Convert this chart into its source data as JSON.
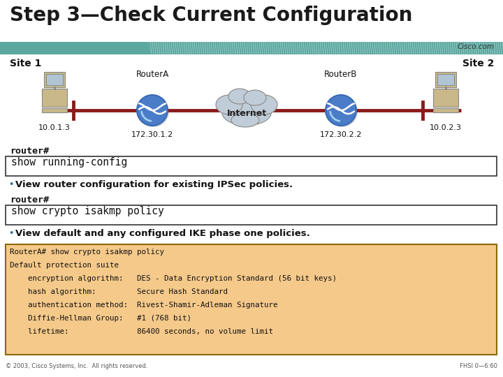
{
  "title": "Step 3—Check Current Configuration",
  "title_fontsize": 20,
  "title_color": "#1a1a1a",
  "bg_color": "#ffffff",
  "header_bar_color1": "#5ba8a8",
  "header_bar_color2": "#3a7a7a",
  "cisco_com": "Cisco.com",
  "site1_label": "Site 1",
  "site2_label": "Site 2",
  "routerA_label": "RouterA",
  "routerB_label": "RouterB",
  "internet_label": "Internet",
  "ip_10013": "10.0.1.3",
  "ip_17212": "172.30.1.2",
  "ip_17222": "172.30.2.2",
  "ip_10023": "10.0.2.3",
  "prompt1": "router#",
  "cmd1": "show running-config",
  "bullet1_dot": "•",
  "bullet1_text": "View router configuration for existing IPSec policies.",
  "prompt2": "router#",
  "cmd2": "show crypto isakmp policy",
  "bullet2_dot": "•",
  "bullet2_text": "View default and any configured IKE phase one policies.",
  "output_box_bg": "#f5c98a",
  "output_box_border": "#8b6a00",
  "output_lines": [
    "RouterA# show crypto isakmp policy",
    "Default protection suite",
    "    encryption algorithm:   DES - Data Encryption Standard (56 bit keys)",
    "    hash algorithm:         Secure Hash Standard",
    "    authentication method:  Rivest-Shamir-Adleman Signature",
    "    Diffie-Hellman Group:   #1 (768 bit)",
    "    lifetime:               86400 seconds, no volume limit"
  ],
  "footer_left": "© 2003, Cisco Systems, Inc.  All rights reserved.",
  "footer_right": "FHSI 0—6:60",
  "cmd_box_border": "#333333",
  "cmd_box_bg": "#ffffff",
  "line_color": "#8b1a1a",
  "router_color": "#4a7cc7",
  "router_color2": "#3a6ab5",
  "cloud_color": "#c0cdd8",
  "cloud_border": "#888888"
}
